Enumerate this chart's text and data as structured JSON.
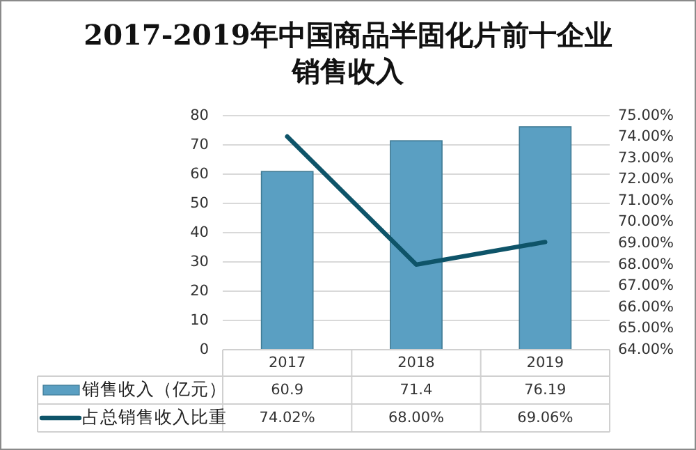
{
  "chart_data": {
    "type": "bar",
    "title": "2017-2019年中国商品半固化片前十企业销售收入",
    "categories": [
      "2017",
      "2018",
      "2019"
    ],
    "series": [
      {
        "name": "销售收入（亿元）",
        "color": "#5a9fc2",
        "values": [
          60.9,
          71.4,
          76.19
        ],
        "value_labels": [
          "60.9",
          "71.4",
          "76.19"
        ]
      },
      {
        "name": "占总销售收入比重",
        "type": "line",
        "axis": "y2",
        "color": "#0e5469",
        "values": [
          74.02,
          68.0,
          69.06
        ],
        "value_labels": [
          "74.02%",
          "68.00%",
          "69.06%"
        ]
      }
    ],
    "ylim": [
      0,
      80
    ],
    "yticks": [
      0,
      10,
      20,
      30,
      40,
      50,
      60,
      70,
      80
    ],
    "y2lim": [
      64,
      75
    ],
    "y2ticks": [
      {
        "value": 64,
        "label": "64.00%"
      },
      {
        "value": 65,
        "label": "65.00%"
      },
      {
        "value": 66,
        "label": "66.00%"
      },
      {
        "value": 67,
        "label": "67.00%"
      },
      {
        "value": 68,
        "label": "68.00%"
      },
      {
        "value": 69,
        "label": "69.00%"
      },
      {
        "value": 70,
        "label": "70.00%"
      },
      {
        "value": 71,
        "label": "71.00%"
      },
      {
        "value": 72,
        "label": "72.00%"
      },
      {
        "value": 73,
        "label": "73.00%"
      },
      {
        "value": 74,
        "label": "74.00%"
      },
      {
        "value": 75,
        "label": "75.00%"
      }
    ],
    "grid": "y",
    "legend": "bottom"
  }
}
